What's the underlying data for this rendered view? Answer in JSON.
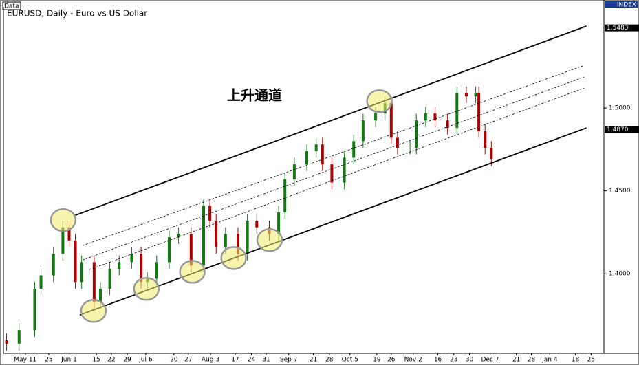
{
  "chart_data": {
    "type": "candlestick",
    "title": "EURUSD, Daily - Euro vs US Dollar",
    "tab_label": "Data",
    "axis_badge": "INDEX",
    "annotation": "上升通道",
    "up_color": "#127812",
    "down_color": "#b00000",
    "xlim": [
      0,
      192
    ],
    "ylim": [
      1.352,
      1.561
    ],
    "yticks": [
      {
        "value": 1.4,
        "label": "1.4000"
      },
      {
        "value": 1.45,
        "label": "1.4500"
      },
      {
        "value": 1.5,
        "label": "1.5000"
      }
    ],
    "price_tags": [
      1.5483,
      {
        "value": 1.487,
        "label": "1.4870"
      }
    ],
    "xticks": [
      {
        "value": 7,
        "label": "May 11"
      },
      {
        "value": 14.5,
        "label": "25"
      },
      {
        "value": 21,
        "label": "Jun 1"
      },
      {
        "value": 29.7,
        "label": "15"
      },
      {
        "value": 34.5,
        "label": "22"
      },
      {
        "value": 39.6,
        "label": "29"
      },
      {
        "value": 45.5,
        "label": "Jul 6"
      },
      {
        "value": 54.5,
        "label": "20"
      },
      {
        "value": 59.1,
        "label": "27"
      },
      {
        "value": 66.2,
        "label": "Aug 3"
      },
      {
        "value": 74.1,
        "label": "17"
      },
      {
        "value": 79.3,
        "label": "24"
      },
      {
        "value": 84,
        "label": "31"
      },
      {
        "value": 91.2,
        "label": "Sep 7"
      },
      {
        "value": 99.1,
        "label": "21"
      },
      {
        "value": 104.2,
        "label": "28"
      },
      {
        "value": 110.8,
        "label": "Oct 5"
      },
      {
        "value": 119.4,
        "label": "19"
      },
      {
        "value": 124,
        "label": "26"
      },
      {
        "value": 131,
        "label": "Nov 2"
      },
      {
        "value": 138.9,
        "label": "16"
      },
      {
        "value": 144,
        "label": "23"
      },
      {
        "value": 149,
        "label": "30"
      },
      {
        "value": 155.6,
        "label": "Dec 7"
      },
      {
        "value": 164,
        "label": "21"
      },
      {
        "value": 168.8,
        "label": "28"
      },
      {
        "value": 174.7,
        "label": "Jan 4"
      },
      {
        "value": 182.9,
        "label": "18"
      },
      {
        "value": 187.9,
        "label": "25"
      }
    ],
    "x": [
      1,
      5,
      10,
      12,
      16,
      19,
      21,
      23,
      25,
      29,
      31,
      34,
      37,
      41,
      44,
      46,
      49,
      53,
      56,
      60,
      64,
      66,
      68,
      71,
      75,
      78,
      81,
      85,
      88,
      90,
      93,
      97,
      100,
      102,
      105,
      109,
      112,
      115,
      119,
      122,
      124,
      126,
      130,
      132,
      135,
      138,
      142,
      145,
      148,
      151,
      152,
      154,
      156
    ],
    "open": [
      1.36,
      1.3577,
      1.366,
      1.391,
      1.399,
      1.412,
      1.428,
      1.42,
      1.395,
      1.407,
      1.383,
      1.391,
      1.403,
      1.407,
      1.412,
      1.395,
      1.397,
      1.407,
      1.422,
      1.424,
      1.405,
      1.441,
      1.432,
      1.416,
      1.424,
      1.412,
      1.432,
      1.428,
      1.424,
      1.437,
      1.457,
      1.466,
      1.474,
      1.478,
      1.466,
      1.455,
      1.47,
      1.48,
      1.4925,
      1.4967,
      1.503,
      1.482,
      1.476,
      1.476,
      1.4925,
      1.4967,
      1.4925,
      1.488,
      1.509,
      1.507,
      1.509,
      1.486,
      1.476
    ],
    "high": [
      1.364,
      1.37,
      1.395,
      1.403,
      1.416,
      1.432,
      1.432,
      1.424,
      1.411,
      1.411,
      1.395,
      1.407,
      1.411,
      1.416,
      1.416,
      1.401,
      1.411,
      1.426,
      1.428,
      1.428,
      1.445,
      1.445,
      1.436,
      1.428,
      1.428,
      1.436,
      1.436,
      1.432,
      1.441,
      1.461,
      1.47,
      1.478,
      1.482,
      1.482,
      1.47,
      1.474,
      1.484,
      1.4965,
      1.5007,
      1.507,
      1.507,
      1.486,
      1.48,
      1.4965,
      1.5007,
      1.5007,
      1.4965,
      1.513,
      1.513,
      1.513,
      1.513,
      1.49,
      1.48
    ],
    "low": [
      1.3537,
      1.3537,
      1.362,
      1.387,
      1.395,
      1.408,
      1.416,
      1.391,
      1.391,
      1.379,
      1.379,
      1.387,
      1.399,
      1.403,
      1.391,
      1.391,
      1.393,
      1.403,
      1.418,
      1.401,
      1.401,
      1.428,
      1.412,
      1.412,
      1.408,
      1.408,
      1.424,
      1.42,
      1.42,
      1.433,
      1.453,
      1.462,
      1.47,
      1.462,
      1.451,
      1.451,
      1.466,
      1.476,
      1.4885,
      1.4927,
      1.478,
      1.472,
      1.472,
      1.472,
      1.4885,
      1.4885,
      1.484,
      1.484,
      1.503,
      1.503,
      1.482,
      1.472,
      1.465
    ],
    "close": [
      1.3577,
      1.366,
      1.391,
      1.399,
      1.412,
      1.428,
      1.42,
      1.395,
      1.407,
      1.383,
      1.391,
      1.403,
      1.407,
      1.412,
      1.395,
      1.397,
      1.407,
      1.422,
      1.424,
      1.405,
      1.441,
      1.432,
      1.416,
      1.424,
      1.412,
      1.432,
      1.428,
      1.424,
      1.437,
      1.457,
      1.466,
      1.474,
      1.478,
      1.466,
      1.455,
      1.47,
      1.48,
      1.4925,
      1.4967,
      1.503,
      1.482,
      1.476,
      1.476,
      1.4925,
      1.4967,
      1.4925,
      1.488,
      1.509,
      1.507,
      1.509,
      1.486,
      1.476,
      1.469
    ],
    "channel_lines": [
      {
        "style": "solid",
        "x": [
          23,
          186.4
        ],
        "y": [
          1.4353,
          1.5494
        ]
      },
      {
        "style": "solid",
        "x": [
          24.4,
          186.4
        ],
        "y": [
          1.3751,
          1.488
        ]
      },
      {
        "style": "dashed",
        "x": [
          25.3,
          185.7
        ],
        "y": [
          1.417,
          1.5257
        ]
      },
      {
        "style": "dashed",
        "x": [
          25.3,
          185.7
        ],
        "y": [
          1.4083,
          1.5187
        ]
      },
      {
        "style": "dashed",
        "x": [
          27.5,
          185.7
        ],
        "y": [
          1.4025,
          1.512
        ]
      }
    ],
    "highlights": {
      "x": [
        19.1,
        28.8,
        45.7,
        60.4,
        73.6,
        85.1,
        120.2
      ],
      "y": [
        1.4324,
        1.3776,
        1.3909,
        1.4012,
        1.4095,
        1.4203,
        1.5041
      ]
    }
  }
}
